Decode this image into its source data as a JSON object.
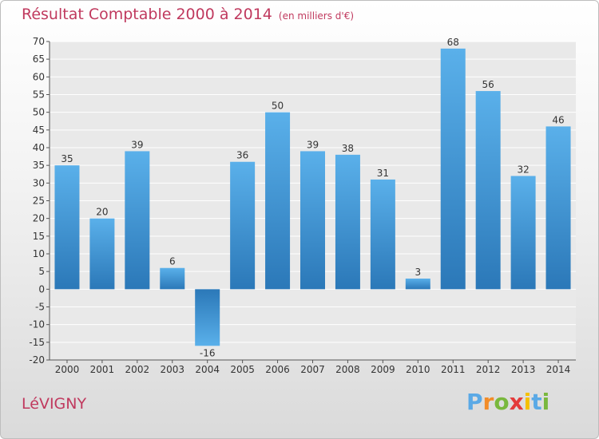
{
  "title": "Résultat Comptable 2000 à 2014",
  "unit": "(en milliers d'€)",
  "commune": "LéVIGNY",
  "logo": {
    "letters": [
      "P",
      "r",
      "o",
      "x",
      "i",
      "t",
      "i"
    ],
    "colors": [
      "#5aa9e6",
      "#f28c28",
      "#79b83d",
      "#e43b3b",
      "#f5c000",
      "#5aa9e6",
      "#79b83d"
    ]
  },
  "colors": {
    "title": "#c0395e",
    "bar_light": "#5ab0ea",
    "bar_dark": "#2b78b8"
  },
  "chart_data": {
    "type": "bar",
    "categories": [
      "2000",
      "2001",
      "2002",
      "2003",
      "2004",
      "2005",
      "2006",
      "2007",
      "2008",
      "2009",
      "2010",
      "2011",
      "2012",
      "2013",
      "2014"
    ],
    "values": [
      35,
      20,
      39,
      6,
      -16,
      36,
      50,
      39,
      38,
      31,
      3,
      68,
      56,
      32,
      46
    ],
    "ylim": [
      -20,
      70
    ],
    "yticks": [
      -20,
      -15,
      -10,
      -5,
      0,
      5,
      10,
      15,
      20,
      25,
      30,
      35,
      40,
      45,
      50,
      55,
      60,
      65,
      70
    ],
    "grid": true,
    "data_labels": true
  }
}
